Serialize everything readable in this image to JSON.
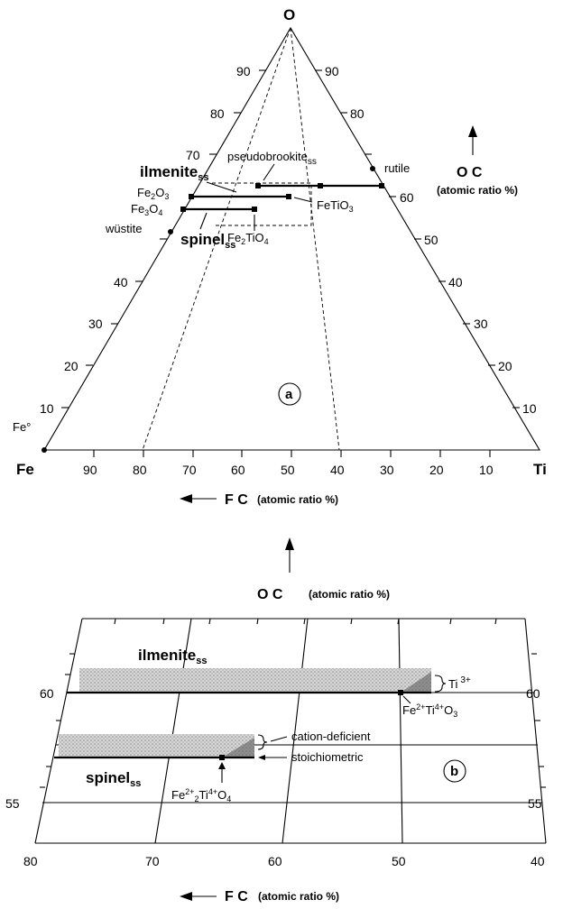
{
  "panel_a": {
    "vertices": {
      "O": "O",
      "Fe": "Fe",
      "Ti": "Ti",
      "Fe0": "Fe°"
    },
    "left_ticks": [
      "90",
      "80",
      "70",
      "40",
      "30",
      "20",
      "10"
    ],
    "right_ticks": [
      "90",
      "80",
      "60",
      "50",
      "40",
      "30",
      "20",
      "10"
    ],
    "bottom_ticks": [
      "90",
      "80",
      "70",
      "60",
      "50",
      "40",
      "30",
      "20",
      "10"
    ],
    "phases": {
      "pseudobrookite": "pseudobrookite",
      "pseudobrookite_sub": "ss",
      "rutile": "rutile",
      "ilmenite": "ilmenite",
      "ilmenite_sub": "ss",
      "fe2o3_main": "Fe",
      "fe2o3_s1": "2",
      "fe2o3_o": "O",
      "fe2o3_s2": "3",
      "fe3o4_main": "Fe",
      "fe3o4_s1": "3",
      "fe3o4_o": "O",
      "fe3o4_s2": "4",
      "wustite": "wüstite",
      "spinel": "spinel",
      "spinel_sub": "ss",
      "fetio3_main": "FeTiO",
      "fetio3_sub": "3",
      "fe2tio4_a": "Fe",
      "fe2tio4_s1": "2",
      "fe2tio4_b": "TiO",
      "fe2tio4_s2": "4"
    },
    "oc_axis": {
      "title": "O C",
      "unit": "(atomic ratio %)"
    },
    "fc_axis": {
      "title": "F C",
      "unit": "(atomic ratio %)"
    },
    "panel_label": "a"
  },
  "panel_b": {
    "oc_axis": {
      "title": "O C",
      "unit": "(atomic ratio %)"
    },
    "fc_axis": {
      "title": "F C",
      "unit": "(atomic ratio %)"
    },
    "left_ticks": [
      "60",
      "55"
    ],
    "right_ticks": [
      "60",
      "55"
    ],
    "bottom_ticks": [
      "80",
      "70",
      "60",
      "50",
      "40"
    ],
    "ilmenite": "ilmenite",
    "ilmenite_sub": "ss",
    "spinel": "spinel",
    "spinel_sub": "ss",
    "ti3_main": "Ti",
    "ti3_sup": "3+",
    "cation_deficient": "cation-deficient",
    "stoichiometric": "stoichiometric",
    "ilm_formula": {
      "p1": "Fe",
      "s1": "2+",
      "p2": "Ti",
      "s2": "4+",
      "p3": "O",
      "s3": "3"
    },
    "spn_formula": {
      "p1": "Fe",
      "s1": "2+",
      "s1b": "2",
      "p2": "Ti",
      "s2": "4+",
      "p3": "O",
      "s3": "4"
    },
    "panel_label": "b"
  },
  "colors": {
    "ink": "#000000",
    "hatch": "#bdbdbd",
    "paper": "#ffffff"
  }
}
